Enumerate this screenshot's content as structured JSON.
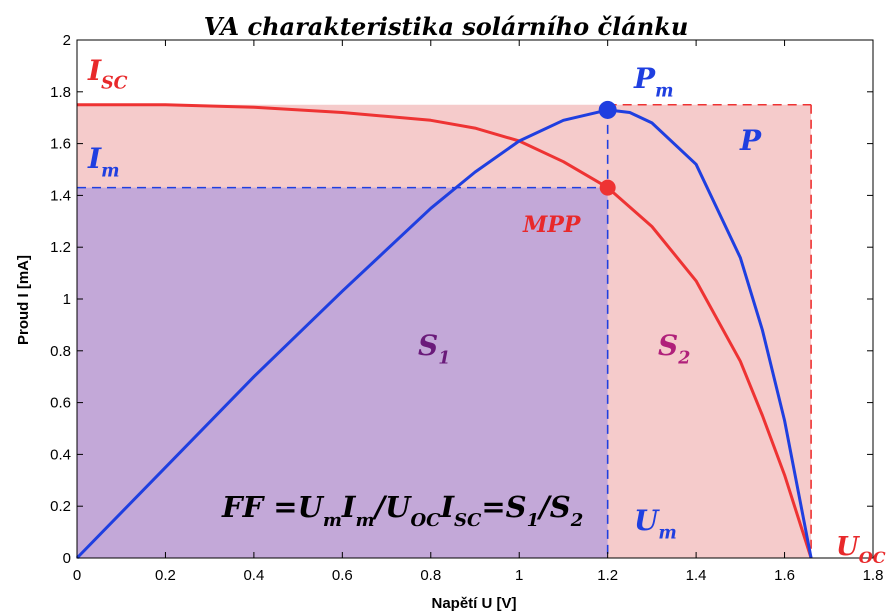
{
  "chart_data": {
    "type": "line",
    "title": "VA charakteristika solárního článku",
    "xlabel": "Napětí U [V]",
    "ylabel": "Proud I [mA]",
    "xlim": [
      0,
      1.8
    ],
    "ylim": [
      0,
      2
    ],
    "xticks": [
      "0",
      "0.2",
      "0.4",
      "0.6",
      "0.8",
      "1",
      "1.2",
      "1.4",
      "1.6",
      "1.8"
    ],
    "yticks": [
      "0",
      "0.2",
      "0.4",
      "0.6",
      "0.8",
      "1",
      "1.2",
      "1.4",
      "1.6",
      "1.8",
      "2"
    ],
    "grid": false,
    "series": [
      {
        "name": "I",
        "color": "#ee3333",
        "x": [
          0,
          0.2,
          0.4,
          0.6,
          0.8,
          0.9,
          1.0,
          1.1,
          1.2,
          1.3,
          1.4,
          1.5,
          1.55,
          1.6,
          1.66
        ],
        "y": [
          1.75,
          1.75,
          1.74,
          1.72,
          1.69,
          1.66,
          1.61,
          1.53,
          1.43,
          1.28,
          1.07,
          0.76,
          0.55,
          0.32,
          0
        ]
      },
      {
        "name": "P",
        "color": "#1f3fe0",
        "x": [
          0,
          0.2,
          0.4,
          0.6,
          0.8,
          0.9,
          1.0,
          1.1,
          1.2,
          1.25,
          1.3,
          1.4,
          1.5,
          1.55,
          1.6,
          1.66
        ],
        "y": [
          0,
          0.35,
          0.7,
          1.03,
          1.35,
          1.49,
          1.61,
          1.69,
          1.73,
          1.72,
          1.68,
          1.52,
          1.16,
          0.88,
          0.53,
          0
        ]
      }
    ],
    "points": {
      "mpp": {
        "x": 1.2,
        "y": 1.43
      },
      "pm": {
        "x": 1.2,
        "y": 1.73
      }
    },
    "isc": 1.75,
    "uoc": 1.66,
    "um": 1.2,
    "im": 1.43,
    "regions": {
      "s1_color": "#c3a8d8",
      "s2_color": "#f5cbcb"
    },
    "annotations": {
      "isc_main": "I",
      "isc_sub": "SC",
      "im_main": "I",
      "im_sub": "m",
      "pm_main": "P",
      "pm_sub": "m",
      "p": "P",
      "mpp": "MPP",
      "s1_main": "S",
      "s1_sub": "1",
      "s2_main": "S",
      "s2_sub": "2",
      "um_main": "U",
      "um_sub": "m",
      "uoc_main": "U",
      "uoc_sub": "OC",
      "ff_parts": [
        {
          "t": "FF =U",
          "sub": false
        },
        {
          "t": "m",
          "sub": true
        },
        {
          "t": "I",
          "sub": false
        },
        {
          "t": "m",
          "sub": true
        },
        {
          "t": "/U",
          "sub": false
        },
        {
          "t": "OC",
          "sub": true
        },
        {
          "t": "I",
          "sub": false
        },
        {
          "t": "SC",
          "sub": true
        },
        {
          "t": "=S",
          "sub": false
        },
        {
          "t": "1",
          "sub": true
        },
        {
          "t": "/S",
          "sub": false
        },
        {
          "t": "2",
          "sub": true
        }
      ]
    },
    "colors": {
      "red": "#ee3333",
      "red_text": "#e8292b",
      "blue": "#1f3fe0",
      "purple_text": "#6a1a7a",
      "magenta_text": "#b0207a"
    }
  }
}
